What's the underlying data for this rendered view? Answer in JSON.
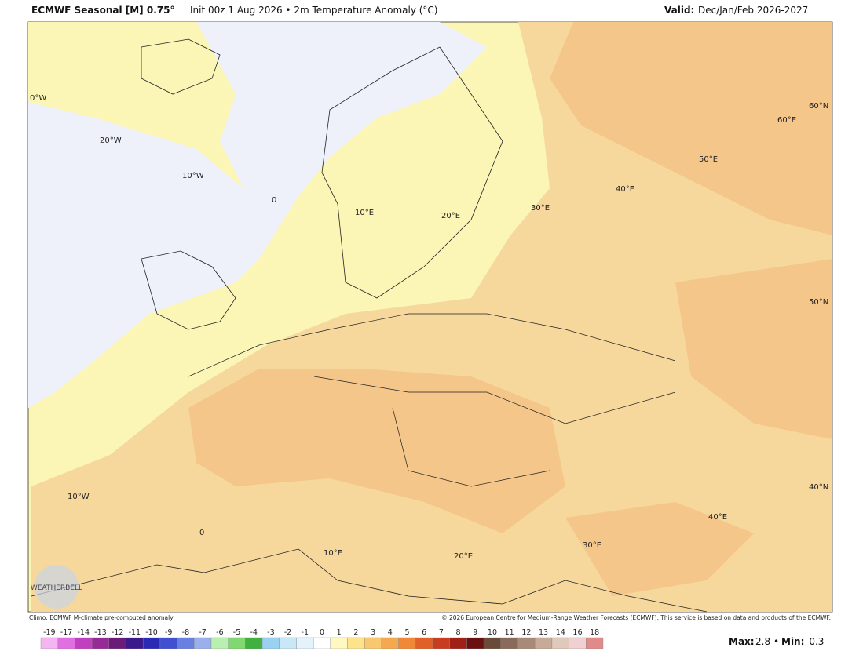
{
  "header": {
    "title": "ECMWF Seasonal [M] 0.75°",
    "subtitle": "Init 00z 1 Aug 2026 • 2m Temperature Anomaly (°C)",
    "valid_label": "Valid:",
    "valid_value": "Dec/Jan/Feb 2026-2027"
  },
  "map": {
    "labels": [
      "0°W",
      "20°W",
      "10°W",
      "0",
      "10°E",
      "20°E",
      "30°E",
      "40°E",
      "50°E",
      "60°E",
      "60°N",
      "50°N",
      "40°N",
      "10°W",
      "0",
      "10°E",
      "20°E",
      "30°E",
      "40°E"
    ],
    "logo": "WEATHERBELL"
  },
  "footer": {
    "climo": "Climo: ECMWF M-climate pre-computed anomaly",
    "copyright": "© 2026 European Centre for Medium-Range Weather Forecasts (ECMWF). This service is based on data and products of the ECMWF.",
    "max_label": "Max:",
    "max_value": 2.8,
    "min_label": "Min:",
    "min_value": -0.3,
    "separator": "•"
  },
  "colorbar": {
    "ticks": [
      -19,
      -17,
      -14,
      -13,
      -12,
      -11,
      -10,
      -9,
      -8,
      -7,
      -6,
      -5,
      -4,
      -3,
      -2,
      -1,
      0,
      1,
      2,
      3,
      4,
      5,
      6,
      7,
      8,
      9,
      10,
      11,
      12,
      13,
      14,
      16,
      18
    ],
    "colors": [
      "#f3b6f0",
      "#e070e0",
      "#c040c0",
      "#962a96",
      "#6a1c78",
      "#3c1a8c",
      "#2a2ab4",
      "#4050d0",
      "#6a80e0",
      "#9ab0ec",
      "#b8f0b0",
      "#80d870",
      "#40b040",
      "#9ad0f0",
      "#c8e8f8",
      "#e4f2fb",
      "#ffffff",
      "#fff8c0",
      "#fde48a",
      "#f8c870",
      "#f4a850",
      "#f08838",
      "#e06028",
      "#c83c20",
      "#a02018",
      "#6a1010",
      "#6a4a3a",
      "#8a6a5a",
      "#a88a78",
      "#c8aa98",
      "#e0c8ba",
      "#f0d0d0",
      "#e08a8a"
    ]
  }
}
